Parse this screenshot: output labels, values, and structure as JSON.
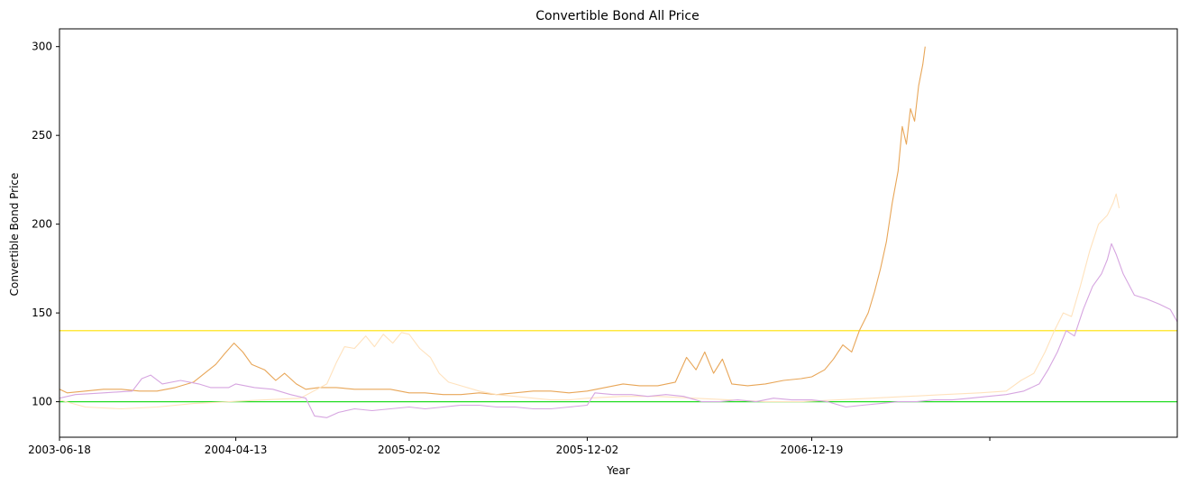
{
  "chart_data": {
    "type": "line",
    "title": "Convertible Bond All Price",
    "xlabel": "Year",
    "ylabel": "Convertible Bond Price",
    "ylim": [
      80,
      310
    ],
    "yticks": [
      100,
      150,
      200,
      250,
      300
    ],
    "xlim": [
      "2003-06-18",
      "2008-09-01"
    ],
    "xticks": [
      {
        "date": "2003-06-18",
        "label": "2003-06-18"
      },
      {
        "date": "2004-04-13",
        "label": "2004-04-13"
      },
      {
        "date": "2005-02-02",
        "label": "2005-02-02"
      },
      {
        "date": "2005-12-02",
        "label": "2005-12-02"
      },
      {
        "date": "2006-12-19",
        "label": "2006-12-19"
      },
      {
        "date": "2007-10-18",
        "label": ""
      }
    ],
    "grid": false,
    "legend": "none",
    "hlines": [
      {
        "y": 140,
        "color": "#ffe000"
      },
      {
        "y": 100,
        "color": "#22dd22"
      }
    ],
    "series": [
      {
        "color": "#e8a658",
        "points": [
          [
            "2003-06-18",
            107
          ],
          [
            "2003-07-01",
            105
          ],
          [
            "2003-08-01",
            106
          ],
          [
            "2003-09-01",
            107
          ],
          [
            "2003-10-01",
            107
          ],
          [
            "2003-11-01",
            106
          ],
          [
            "2003-12-01",
            106
          ],
          [
            "2004-01-01",
            108
          ],
          [
            "2004-02-01",
            111
          ],
          [
            "2004-02-20",
            116
          ],
          [
            "2004-03-10",
            121
          ],
          [
            "2004-03-25",
            127
          ],
          [
            "2004-04-10",
            133
          ],
          [
            "2004-04-25",
            128
          ],
          [
            "2004-05-10",
            121
          ],
          [
            "2004-06-01",
            118
          ],
          [
            "2004-06-20",
            112
          ],
          [
            "2004-07-05",
            116
          ],
          [
            "2004-07-25",
            110
          ],
          [
            "2004-08-10",
            107
          ],
          [
            "2004-09-01",
            108
          ],
          [
            "2004-10-01",
            108
          ],
          [
            "2004-11-01",
            107
          ],
          [
            "2004-12-01",
            107
          ],
          [
            "2005-01-01",
            107
          ],
          [
            "2005-02-02",
            105
          ],
          [
            "2005-03-01",
            105
          ],
          [
            "2005-04-01",
            104
          ],
          [
            "2005-05-01",
            104
          ],
          [
            "2005-06-01",
            105
          ],
          [
            "2005-07-01",
            104
          ],
          [
            "2005-08-01",
            105
          ],
          [
            "2005-09-01",
            106
          ],
          [
            "2005-10-01",
            106
          ],
          [
            "2005-11-01",
            105
          ],
          [
            "2005-12-02",
            106
          ],
          [
            "2006-01-01",
            108
          ],
          [
            "2006-02-01",
            110
          ],
          [
            "2006-03-01",
            109
          ],
          [
            "2006-04-01",
            109
          ],
          [
            "2006-05-01",
            111
          ],
          [
            "2006-05-20",
            125
          ],
          [
            "2006-06-05",
            118
          ],
          [
            "2006-06-20",
            128
          ],
          [
            "2006-07-05",
            116
          ],
          [
            "2006-07-20",
            124
          ],
          [
            "2006-08-05",
            110
          ],
          [
            "2006-09-01",
            109
          ],
          [
            "2006-10-01",
            110
          ],
          [
            "2006-11-01",
            112
          ],
          [
            "2006-12-01",
            113
          ],
          [
            "2006-12-19",
            114
          ],
          [
            "2007-01-10",
            118
          ],
          [
            "2007-01-25",
            124
          ],
          [
            "2007-02-10",
            132
          ],
          [
            "2007-02-25",
            128
          ],
          [
            "2007-03-10",
            140
          ],
          [
            "2007-03-25",
            150
          ],
          [
            "2007-04-05",
            162
          ],
          [
            "2007-04-15",
            175
          ],
          [
            "2007-04-25",
            190
          ],
          [
            "2007-05-05",
            212
          ],
          [
            "2007-05-15",
            230
          ],
          [
            "2007-05-22",
            255
          ],
          [
            "2007-05-29",
            245
          ],
          [
            "2007-06-05",
            265
          ],
          [
            "2007-06-12",
            258
          ],
          [
            "2007-06-19",
            278
          ],
          [
            "2007-06-26",
            290
          ],
          [
            "2007-06-30",
            300
          ]
        ]
      },
      {
        "color": "#ffe2bd",
        "points": [
          [
            "2003-06-18",
            101
          ],
          [
            "2003-08-01",
            97
          ],
          [
            "2003-10-01",
            96
          ],
          [
            "2003-12-01",
            97
          ],
          [
            "2004-02-01",
            99
          ],
          [
            "2004-04-01",
            100
          ],
          [
            "2004-06-01",
            101
          ],
          [
            "2004-08-01",
            102
          ],
          [
            "2004-09-15",
            110
          ],
          [
            "2004-10-01",
            122
          ],
          [
            "2004-10-15",
            131
          ],
          [
            "2004-11-01",
            130
          ],
          [
            "2004-11-20",
            137
          ],
          [
            "2004-12-05",
            131
          ],
          [
            "2004-12-20",
            138
          ],
          [
            "2005-01-05",
            133
          ],
          [
            "2005-01-20",
            139
          ],
          [
            "2005-02-02",
            138
          ],
          [
            "2005-02-20",
            130
          ],
          [
            "2005-03-10",
            125
          ],
          [
            "2005-03-25",
            116
          ],
          [
            "2005-04-10",
            111
          ],
          [
            "2005-05-01",
            109
          ],
          [
            "2005-06-01",
            106
          ],
          [
            "2005-07-01",
            104
          ],
          [
            "2005-08-01",
            103
          ],
          [
            "2005-09-01",
            102
          ],
          [
            "2005-10-01",
            101
          ],
          [
            "2005-11-01",
            101
          ],
          [
            "2005-12-02",
            102
          ],
          [
            "2006-02-01",
            103
          ],
          [
            "2006-04-01",
            103
          ],
          [
            "2006-06-01",
            102
          ],
          [
            "2006-08-01",
            101
          ],
          [
            "2006-10-01",
            100
          ],
          [
            "2006-12-01",
            100
          ],
          [
            "2007-02-01",
            101
          ],
          [
            "2007-04-01",
            102
          ],
          [
            "2007-06-01",
            103
          ],
          [
            "2007-08-01",
            104
          ],
          [
            "2007-10-01",
            105
          ],
          [
            "2007-11-15",
            106
          ],
          [
            "2007-12-10",
            112
          ],
          [
            "2008-01-01",
            116
          ],
          [
            "2008-01-20",
            128
          ],
          [
            "2008-02-05",
            140
          ],
          [
            "2008-02-20",
            150
          ],
          [
            "2008-03-05",
            148
          ],
          [
            "2008-03-20",
            165
          ],
          [
            "2008-04-05",
            185
          ],
          [
            "2008-04-20",
            200
          ],
          [
            "2008-05-05",
            205
          ],
          [
            "2008-05-15",
            212
          ],
          [
            "2008-05-20",
            217
          ],
          [
            "2008-05-25",
            209
          ]
        ]
      },
      {
        "color": "#d6a5e0",
        "points": [
          [
            "2003-06-18",
            102
          ],
          [
            "2003-07-15",
            104
          ],
          [
            "2003-09-01",
            105
          ],
          [
            "2003-10-20",
            106
          ],
          [
            "2003-11-05",
            113
          ],
          [
            "2003-11-20",
            115
          ],
          [
            "2003-12-10",
            110
          ],
          [
            "2004-01-10",
            112
          ],
          [
            "2004-02-10",
            110
          ],
          [
            "2004-03-01",
            108
          ],
          [
            "2004-04-01",
            108
          ],
          [
            "2004-04-13",
            110
          ],
          [
            "2004-05-15",
            108
          ],
          [
            "2004-06-15",
            107
          ],
          [
            "2004-07-15",
            104
          ],
          [
            "2004-08-10",
            102
          ],
          [
            "2004-08-25",
            92
          ],
          [
            "2004-09-15",
            91
          ],
          [
            "2004-10-05",
            94
          ],
          [
            "2004-11-01",
            96
          ],
          [
            "2004-12-01",
            95
          ],
          [
            "2005-01-01",
            96
          ],
          [
            "2005-02-02",
            97
          ],
          [
            "2005-03-01",
            96
          ],
          [
            "2005-04-01",
            97
          ],
          [
            "2005-05-01",
            98
          ],
          [
            "2005-06-01",
            98
          ],
          [
            "2005-07-01",
            97
          ],
          [
            "2005-08-01",
            97
          ],
          [
            "2005-09-01",
            96
          ],
          [
            "2005-10-01",
            96
          ],
          [
            "2005-11-01",
            97
          ],
          [
            "2005-12-02",
            98
          ],
          [
            "2005-12-15",
            105
          ],
          [
            "2006-01-15",
            104
          ],
          [
            "2006-02-15",
            104
          ],
          [
            "2006-03-15",
            103
          ],
          [
            "2006-04-15",
            104
          ],
          [
            "2006-05-15",
            103
          ],
          [
            "2006-06-15",
            100
          ],
          [
            "2006-07-15",
            100
          ],
          [
            "2006-08-15",
            101
          ],
          [
            "2006-09-15",
            100
          ],
          [
            "2006-10-15",
            102
          ],
          [
            "2006-11-15",
            101
          ],
          [
            "2006-12-19",
            101
          ],
          [
            "2007-01-15",
            100
          ],
          [
            "2007-02-15",
            97
          ],
          [
            "2007-03-15",
            98
          ],
          [
            "2007-04-15",
            99
          ],
          [
            "2007-05-15",
            100
          ],
          [
            "2007-06-15",
            100
          ],
          [
            "2007-07-15",
            101
          ],
          [
            "2007-08-15",
            101
          ],
          [
            "2007-09-15",
            102
          ],
          [
            "2007-10-15",
            103
          ],
          [
            "2007-11-15",
            104
          ],
          [
            "2007-12-15",
            106
          ],
          [
            "2008-01-10",
            110
          ],
          [
            "2008-01-25",
            118
          ],
          [
            "2008-02-10",
            128
          ],
          [
            "2008-02-25",
            140
          ],
          [
            "2008-03-10",
            137
          ],
          [
            "2008-03-25",
            152
          ],
          [
            "2008-04-10",
            165
          ],
          [
            "2008-04-25",
            172
          ],
          [
            "2008-05-05",
            180
          ],
          [
            "2008-05-12",
            189
          ],
          [
            "2008-05-20",
            183
          ],
          [
            "2008-06-01",
            172
          ],
          [
            "2008-06-20",
            160
          ],
          [
            "2008-07-10",
            158
          ],
          [
            "2008-08-01",
            155
          ],
          [
            "2008-08-20",
            152
          ],
          [
            "2008-09-01",
            145
          ]
        ]
      }
    ]
  }
}
